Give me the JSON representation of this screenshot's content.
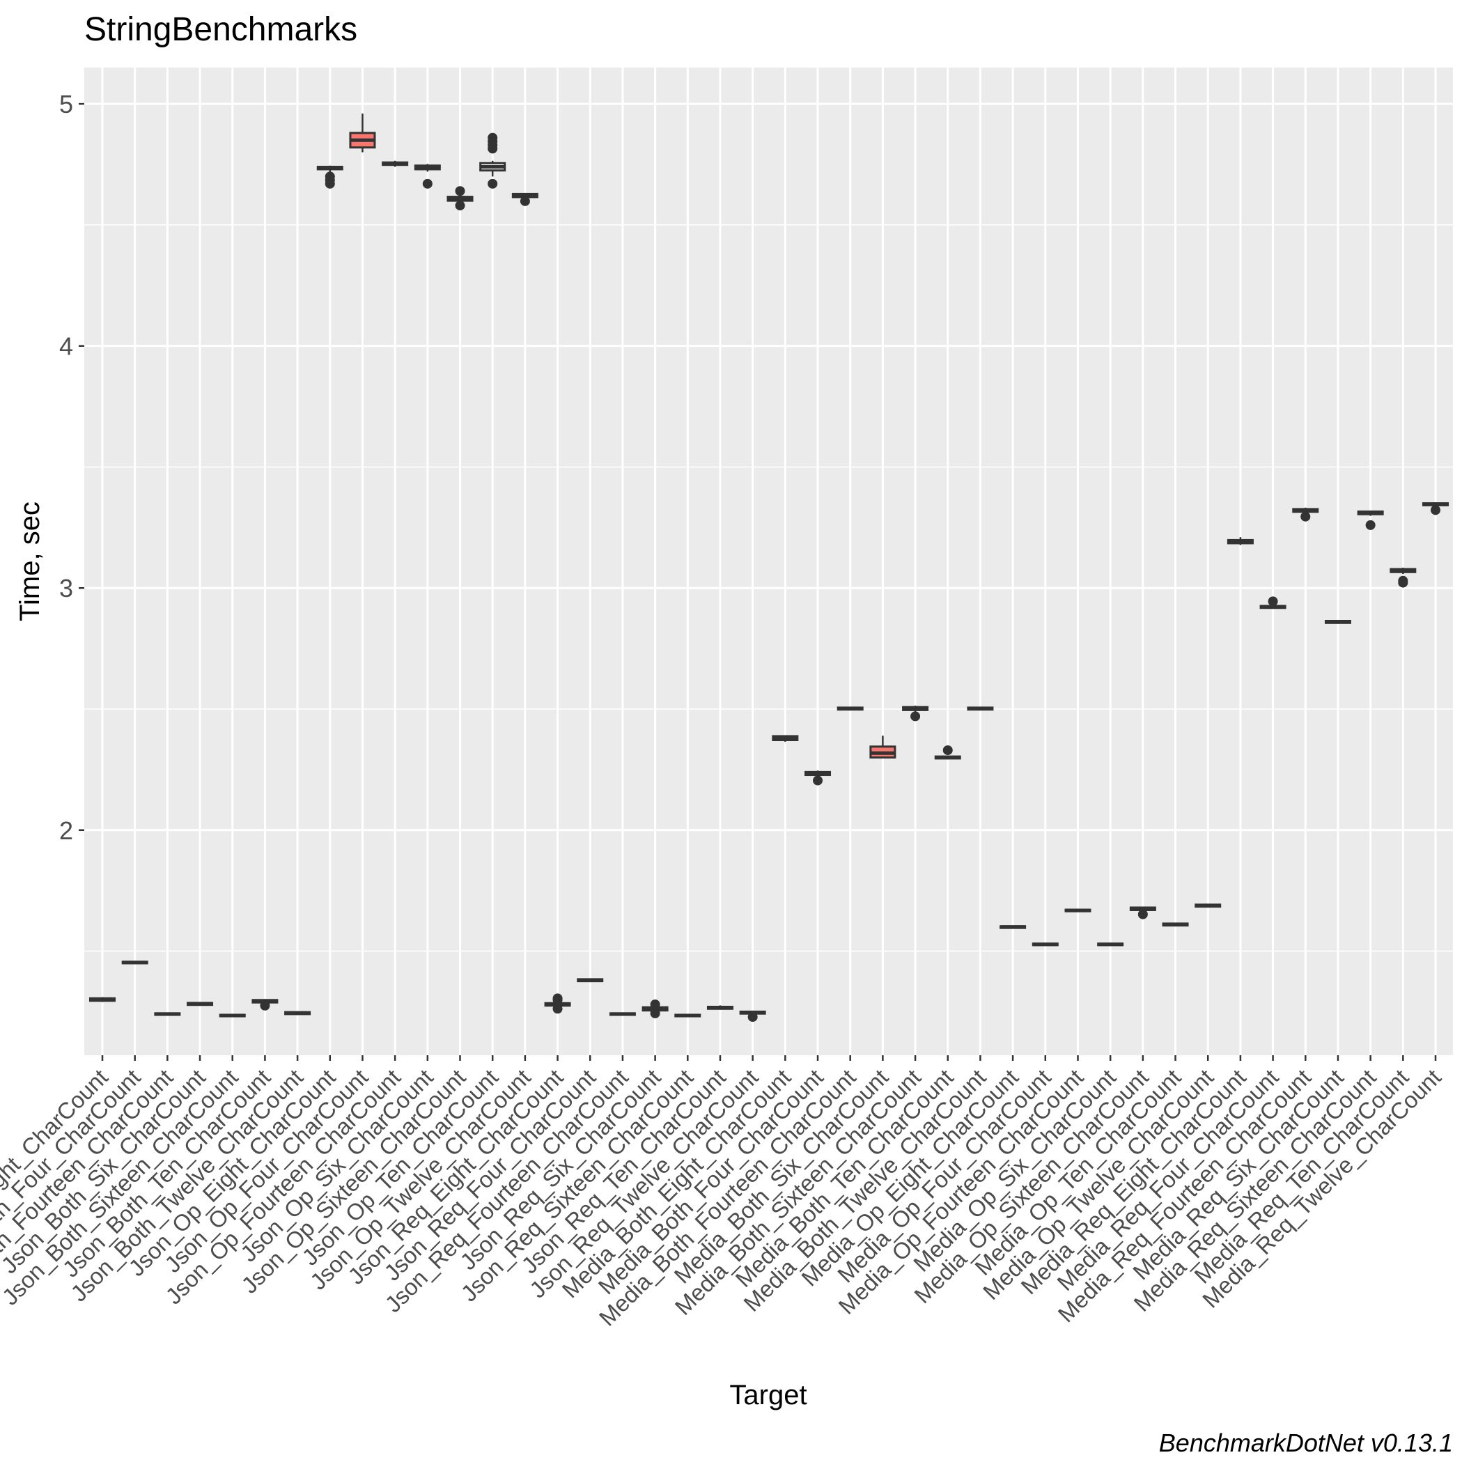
{
  "chart_data": {
    "type": "box",
    "title": "StringBenchmarks",
    "xlabel": "Target",
    "ylabel": "Time, sec",
    "caption": "BenchmarkDotNet v0.13.1",
    "ylim": [
      1.07,
      5.15
    ],
    "yticks": [
      2,
      3,
      4,
      5
    ],
    "grid": true,
    "legend": "none",
    "colors": {
      "panel": "#EBEBEB",
      "grid": "#FFFFFF",
      "box_stroke": "#333333",
      "box_fill": "#FFFFFF",
      "highlight_fill": "#F8766D",
      "text": "#4D4D4D"
    },
    "categories": [
      "Json_Both_Eight_CharCount",
      "Json_Both_Four_CharCount",
      "Json_Both_Fourteen_CharCount",
      "Json_Both_Six_CharCount",
      "Json_Both_Sixteen_CharCount",
      "Json_Both_Ten_CharCount",
      "Json_Both_Twelve_CharCount",
      "Json_Op_Eight_CharCount",
      "Json_Op_Four_CharCount",
      "Json_Op_Fourteen_CharCount",
      "Json_Op_Six_CharCount",
      "Json_Op_Sixteen_CharCount",
      "Json_Op_Ten_CharCount",
      "Json_Op_Twelve_CharCount",
      "Json_Req_Eight_CharCount",
      "Json_Req_Four_CharCount",
      "Json_Req_Fourteen_CharCount",
      "Json_Req_Six_CharCount",
      "Json_Req_Sixteen_CharCount",
      "Json_Req_Ten_CharCount",
      "Json_Req_Twelve_CharCount",
      "Media_Both_Eight_CharCount",
      "Media_Both_Four_CharCount",
      "Media_Both_Fourteen_CharCount",
      "Media_Both_Six_CharCount",
      "Media_Both_Sixteen_CharCount",
      "Media_Both_Ten_CharCount",
      "Media_Both_Twelve_CharCount",
      "Media_Op_Eight_CharCount",
      "Media_Op_Four_CharCount",
      "Media_Op_Fourteen_CharCount",
      "Media_Op_Six_CharCount",
      "Media_Op_Sixteen_CharCount",
      "Media_Op_Ten_CharCount",
      "Media_Op_Twelve_CharCount",
      "Media_Req_Eight_CharCount",
      "Media_Req_Four_CharCount",
      "Media_Req_Fourteen_CharCount",
      "Media_Req_Six_CharCount",
      "Media_Req_Sixteen_CharCount",
      "Media_Req_Ten_CharCount",
      "Media_Req_Twelve_CharCount"
    ],
    "boxes": [
      {
        "q1": 1.295,
        "med": 1.3,
        "q3": 1.305,
        "wlo": 1.29,
        "whi": 1.31,
        "outliers": []
      },
      {
        "q1": 1.45,
        "med": 1.453,
        "q3": 1.456,
        "wlo": 1.448,
        "whi": 1.458,
        "outliers": []
      },
      {
        "q1": 1.237,
        "med": 1.24,
        "q3": 1.243,
        "wlo": 1.234,
        "whi": 1.246,
        "outliers": []
      },
      {
        "q1": 1.278,
        "med": 1.282,
        "q3": 1.286,
        "wlo": 1.274,
        "whi": 1.29,
        "outliers": []
      },
      {
        "q1": 1.231,
        "med": 1.234,
        "q3": 1.237,
        "wlo": 1.228,
        "whi": 1.24,
        "outliers": []
      },
      {
        "q1": 1.288,
        "med": 1.294,
        "q3": 1.298,
        "wlo": 1.282,
        "whi": 1.302,
        "outliers": [
          1.275
        ]
      },
      {
        "q1": 1.24,
        "med": 1.244,
        "q3": 1.248,
        "wlo": 1.236,
        "whi": 1.252,
        "outliers": []
      },
      {
        "q1": 4.73,
        "med": 4.735,
        "q3": 4.74,
        "wlo": 4.715,
        "whi": 4.745,
        "outliers": [
          4.7,
          4.685,
          4.67
        ]
      },
      {
        "q1": 4.82,
        "med": 4.85,
        "q3": 4.88,
        "wlo": 4.8,
        "whi": 4.96,
        "outliers": []
      },
      {
        "q1": 4.748,
        "med": 4.752,
        "q3": 4.758,
        "wlo": 4.74,
        "whi": 4.765,
        "outliers": []
      },
      {
        "q1": 4.73,
        "med": 4.738,
        "q3": 4.745,
        "wlo": 4.72,
        "whi": 4.752,
        "outliers": [
          4.67
        ]
      },
      {
        "q1": 4.6,
        "med": 4.608,
        "q3": 4.616,
        "wlo": 4.59,
        "whi": 4.625,
        "outliers": [
          4.64,
          4.58
        ]
      },
      {
        "q1": 4.725,
        "med": 4.74,
        "q3": 4.755,
        "wlo": 4.7,
        "whi": 4.765,
        "outliers": [
          4.86,
          4.845,
          4.83,
          4.815,
          4.67
        ]
      },
      {
        "q1": 4.615,
        "med": 4.62,
        "q3": 4.628,
        "wlo": 4.608,
        "whi": 4.632,
        "outliers": [
          4.598
        ]
      },
      {
        "q1": 1.275,
        "med": 1.28,
        "q3": 1.285,
        "wlo": 1.27,
        "whi": 1.29,
        "outliers": [
          1.305,
          1.298,
          1.262
        ]
      },
      {
        "q1": 1.376,
        "med": 1.38,
        "q3": 1.384,
        "wlo": 1.372,
        "whi": 1.388,
        "outliers": []
      },
      {
        "q1": 1.237,
        "med": 1.24,
        "q3": 1.243,
        "wlo": 1.234,
        "whi": 1.246,
        "outliers": []
      },
      {
        "q1": 1.255,
        "med": 1.262,
        "q3": 1.268,
        "wlo": 1.248,
        "whi": 1.274,
        "outliers": [
          1.28,
          1.243
        ]
      },
      {
        "q1": 1.231,
        "med": 1.234,
        "q3": 1.237,
        "wlo": 1.228,
        "whi": 1.24,
        "outliers": []
      },
      {
        "q1": 1.262,
        "med": 1.266,
        "q3": 1.27,
        "wlo": 1.258,
        "whi": 1.276,
        "outliers": []
      },
      {
        "q1": 1.242,
        "med": 1.246,
        "q3": 1.25,
        "wlo": 1.238,
        "whi": 1.254,
        "outliers": [
          1.228
        ]
      },
      {
        "q1": 2.372,
        "med": 2.38,
        "q3": 2.388,
        "wlo": 2.365,
        "whi": 2.392,
        "outliers": []
      },
      {
        "q1": 2.228,
        "med": 2.234,
        "q3": 2.24,
        "wlo": 2.222,
        "whi": 2.246,
        "outliers": [
          2.205
        ]
      },
      {
        "q1": 2.498,
        "med": 2.502,
        "q3": 2.506,
        "wlo": 2.494,
        "whi": 2.51,
        "outliers": []
      },
      {
        "q1": 2.3,
        "med": 2.318,
        "q3": 2.345,
        "wlo": 2.296,
        "whi": 2.39,
        "outliers": []
      },
      {
        "q1": 2.496,
        "med": 2.502,
        "q3": 2.508,
        "wlo": 2.488,
        "whi": 2.514,
        "outliers": [
          2.47
        ]
      },
      {
        "q1": 2.296,
        "med": 2.3,
        "q3": 2.304,
        "wlo": 2.292,
        "whi": 2.308,
        "outliers": [
          2.33
        ]
      },
      {
        "q1": 2.498,
        "med": 2.502,
        "q3": 2.506,
        "wlo": 2.494,
        "whi": 2.51,
        "outliers": []
      },
      {
        "q1": 1.596,
        "med": 1.6,
        "q3": 1.603,
        "wlo": 1.593,
        "whi": 1.606,
        "outliers": []
      },
      {
        "q1": 1.525,
        "med": 1.528,
        "q3": 1.531,
        "wlo": 1.522,
        "whi": 1.534,
        "outliers": []
      },
      {
        "q1": 1.665,
        "med": 1.668,
        "q3": 1.671,
        "wlo": 1.662,
        "whi": 1.674,
        "outliers": []
      },
      {
        "q1": 1.525,
        "med": 1.528,
        "q3": 1.531,
        "wlo": 1.522,
        "whi": 1.534,
        "outliers": []
      },
      {
        "q1": 1.67,
        "med": 1.676,
        "q3": 1.68,
        "wlo": 1.662,
        "whi": 1.684,
        "outliers": [
          1.652
        ]
      },
      {
        "q1": 1.606,
        "med": 1.61,
        "q3": 1.614,
        "wlo": 1.602,
        "whi": 1.618,
        "outliers": []
      },
      {
        "q1": 1.684,
        "med": 1.688,
        "q3": 1.692,
        "wlo": 1.68,
        "whi": 1.696,
        "outliers": []
      },
      {
        "q1": 3.185,
        "med": 3.192,
        "q3": 3.198,
        "wlo": 3.178,
        "whi": 3.21,
        "outliers": []
      },
      {
        "q1": 2.918,
        "med": 2.922,
        "q3": 2.926,
        "wlo": 2.914,
        "whi": 2.935,
        "outliers": [
          2.945
        ]
      },
      {
        "q1": 3.315,
        "med": 3.32,
        "q3": 3.326,
        "wlo": 3.308,
        "whi": 3.332,
        "outliers": [
          3.295
        ]
      },
      {
        "q1": 2.856,
        "med": 2.86,
        "q3": 2.864,
        "wlo": 2.852,
        "whi": 2.868,
        "outliers": []
      },
      {
        "q1": 3.305,
        "med": 3.31,
        "q3": 3.316,
        "wlo": 3.298,
        "whi": 3.32,
        "outliers": [
          3.26
        ]
      },
      {
        "q1": 3.066,
        "med": 3.072,
        "q3": 3.078,
        "wlo": 3.058,
        "whi": 3.084,
        "outliers": [
          3.03,
          3.022
        ]
      },
      {
        "q1": 3.342,
        "med": 3.346,
        "q3": 3.35,
        "wlo": 3.338,
        "whi": 3.354,
        "outliers": [
          3.322
        ]
      }
    ],
    "highlighted": [
      8,
      24
    ]
  }
}
